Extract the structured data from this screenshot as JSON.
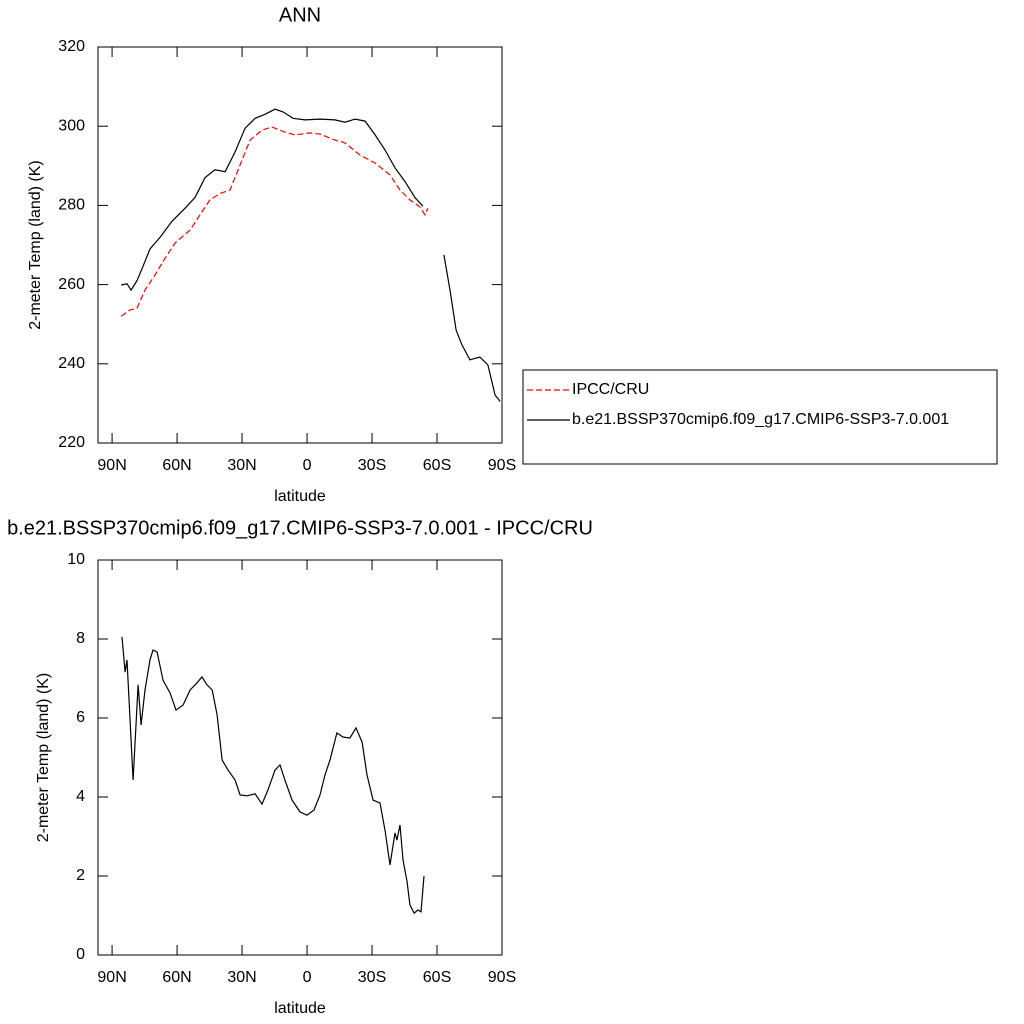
{
  "chart_data": [
    {
      "type": "line",
      "title": "ANN",
      "xlabel": "latitude",
      "ylabel": "2-meter Temp (land) (K)",
      "xlim": [
        96.5,
        -90
      ],
      "ylim": [
        220,
        320
      ],
      "xticks": [
        {
          "value": 90,
          "label": "90N"
        },
        {
          "value": 60,
          "label": "60N"
        },
        {
          "value": 30,
          "label": "30N"
        },
        0,
        {
          "value": -30,
          "label": "30S"
        },
        {
          "value": -60,
          "label": "60S"
        },
        {
          "value": -90,
          "label": "90S"
        }
      ],
      "yticks": [
        220,
        240,
        260,
        280,
        300,
        320
      ],
      "legend": "right",
      "series": [
        {
          "name": "IPCC/CRU",
          "color": "#ff0000",
          "line_style": "dashed",
          "x": [
            85.8,
            81.7,
            78.5,
            74.8,
            70.2,
            65.5,
            60.9,
            54.0,
            49.4,
            44.8,
            40.2,
            35.5,
            30.9,
            26.3,
            20.8,
            16.2,
            10.2,
            5.5,
            -1.4,
            -6.0,
            -12.9,
            -17.5,
            -24.5,
            -31.4,
            -38.3,
            -42.9,
            -47.5,
            -52.2,
            -54.5,
            -55.8
          ],
          "values": [
            252,
            253.6,
            254,
            258.6,
            262.4,
            266.7,
            270.5,
            273.8,
            277.6,
            281.4,
            283,
            283.9,
            290.2,
            296.5,
            299,
            299.8,
            298.5,
            297.8,
            298.3,
            298,
            296.5,
            295.8,
            292.7,
            290.7,
            287.7,
            283.9,
            281.4,
            279.6,
            277.6,
            279.3
          ]
        },
        {
          "name": "b.e21.BSSP370cmip6.f09_g17.CMIP6-SSP3-7.0.001",
          "color": "#000000",
          "line_style": "solid",
          "x": [
            85.8,
            83.1,
            81.2,
            78.5,
            76.2,
            72.5,
            67.8,
            62.3,
            56.3,
            51.7,
            47.1,
            42.5,
            37.8,
            33.2,
            28.6,
            24.0,
            19.4,
            14.8,
            11.1,
            6.5,
            1.0,
            -6.0,
            -12.9,
            -17.5,
            -22.2,
            -26.8,
            -31.4,
            -36.0,
            -40.6,
            -45.2,
            -49.8,
            -53.5,
            -58.5,
            -63.2,
            -66.0,
            -68.8,
            -71.5,
            -75.2,
            -79.8,
            -83.5,
            -86.8,
            -89.1
          ],
          "values": [
            259.9,
            260.2,
            258.6,
            261,
            264,
            269,
            272,
            276,
            279.3,
            282,
            287,
            289,
            288.5,
            293.5,
            299.5,
            302,
            303,
            304.3,
            303.6,
            302,
            301.6,
            301.8,
            301.6,
            301,
            301.8,
            301.3,
            297.8,
            294,
            289.5,
            286,
            282,
            279.8,
            null,
            267.5,
            258.6,
            248.5,
            244.8,
            241,
            241.7,
            239.7,
            232.1,
            230.5
          ]
        }
      ]
    },
    {
      "type": "line",
      "title": "b.e21.BSSP370cmip6.f09_g17.CMIP6-SSP3-7.0.001 - IPCC/CRU",
      "xlabel": "latitude",
      "ylabel": "2-meter Temp (land) (K)",
      "xlim": [
        96.5,
        -90
      ],
      "ylim": [
        0,
        10
      ],
      "xticks": [
        {
          "value": 90,
          "label": "90N"
        },
        {
          "value": 60,
          "label": "60N"
        },
        {
          "value": 30,
          "label": "30N"
        },
        0,
        {
          "value": -30,
          "label": "30S"
        },
        {
          "value": -60,
          "label": "60S"
        },
        {
          "value": -90,
          "label": "90S"
        }
      ],
      "yticks": [
        0,
        2,
        4,
        6,
        8,
        10
      ],
      "series": [
        {
          "color": "#000000",
          "line_style": "solid",
          "x": [
            85.4,
            84.0,
            83.1,
            80.3,
            78.0,
            76.6,
            74.8,
            72.5,
            71.1,
            69.2,
            66.5,
            63.2,
            60.5,
            57.2,
            54.0,
            50.8,
            48.5,
            46.2,
            43.8,
            41.5,
            39.2,
            36.5,
            33.2,
            30.9,
            27.7,
            24.0,
            20.8,
            18.0,
            14.8,
            12.5,
            10.2,
            6.9,
            3.2,
            0.0,
            -3.2,
            -6.0,
            -8.3,
            -10.6,
            -13.8,
            -16.6,
            -19.8,
            -22.6,
            -25.4,
            -27.7,
            -30.5,
            -33.7,
            -36.0,
            -38.3,
            -40.6,
            -41.5,
            -42.9,
            -44.3,
            -46.2,
            -47.5,
            -49.4,
            -51.2,
            -52.6,
            -54.0
          ],
          "values": [
            8.05,
            7.16,
            7.47,
            4.43,
            6.84,
            5.82,
            6.71,
            7.47,
            7.72,
            7.67,
            6.96,
            6.63,
            6.2,
            6.33,
            6.71,
            6.89,
            7.04,
            6.84,
            6.71,
            6.08,
            4.94,
            4.68,
            4.43,
            4.05,
            4.03,
            4.08,
            3.82,
            4.18,
            4.68,
            4.81,
            4.43,
            3.92,
            3.62,
            3.54,
            3.67,
            4.05,
            4.56,
            4.94,
            5.62,
            5.52,
            5.49,
            5.75,
            5.39,
            4.56,
            3.92,
            3.85,
            3.16,
            2.28,
            3.09,
            2.91,
            3.29,
            2.41,
            1.85,
            1.27,
            1.06,
            1.14,
            1.09,
            2.0
          ]
        }
      ]
    }
  ]
}
